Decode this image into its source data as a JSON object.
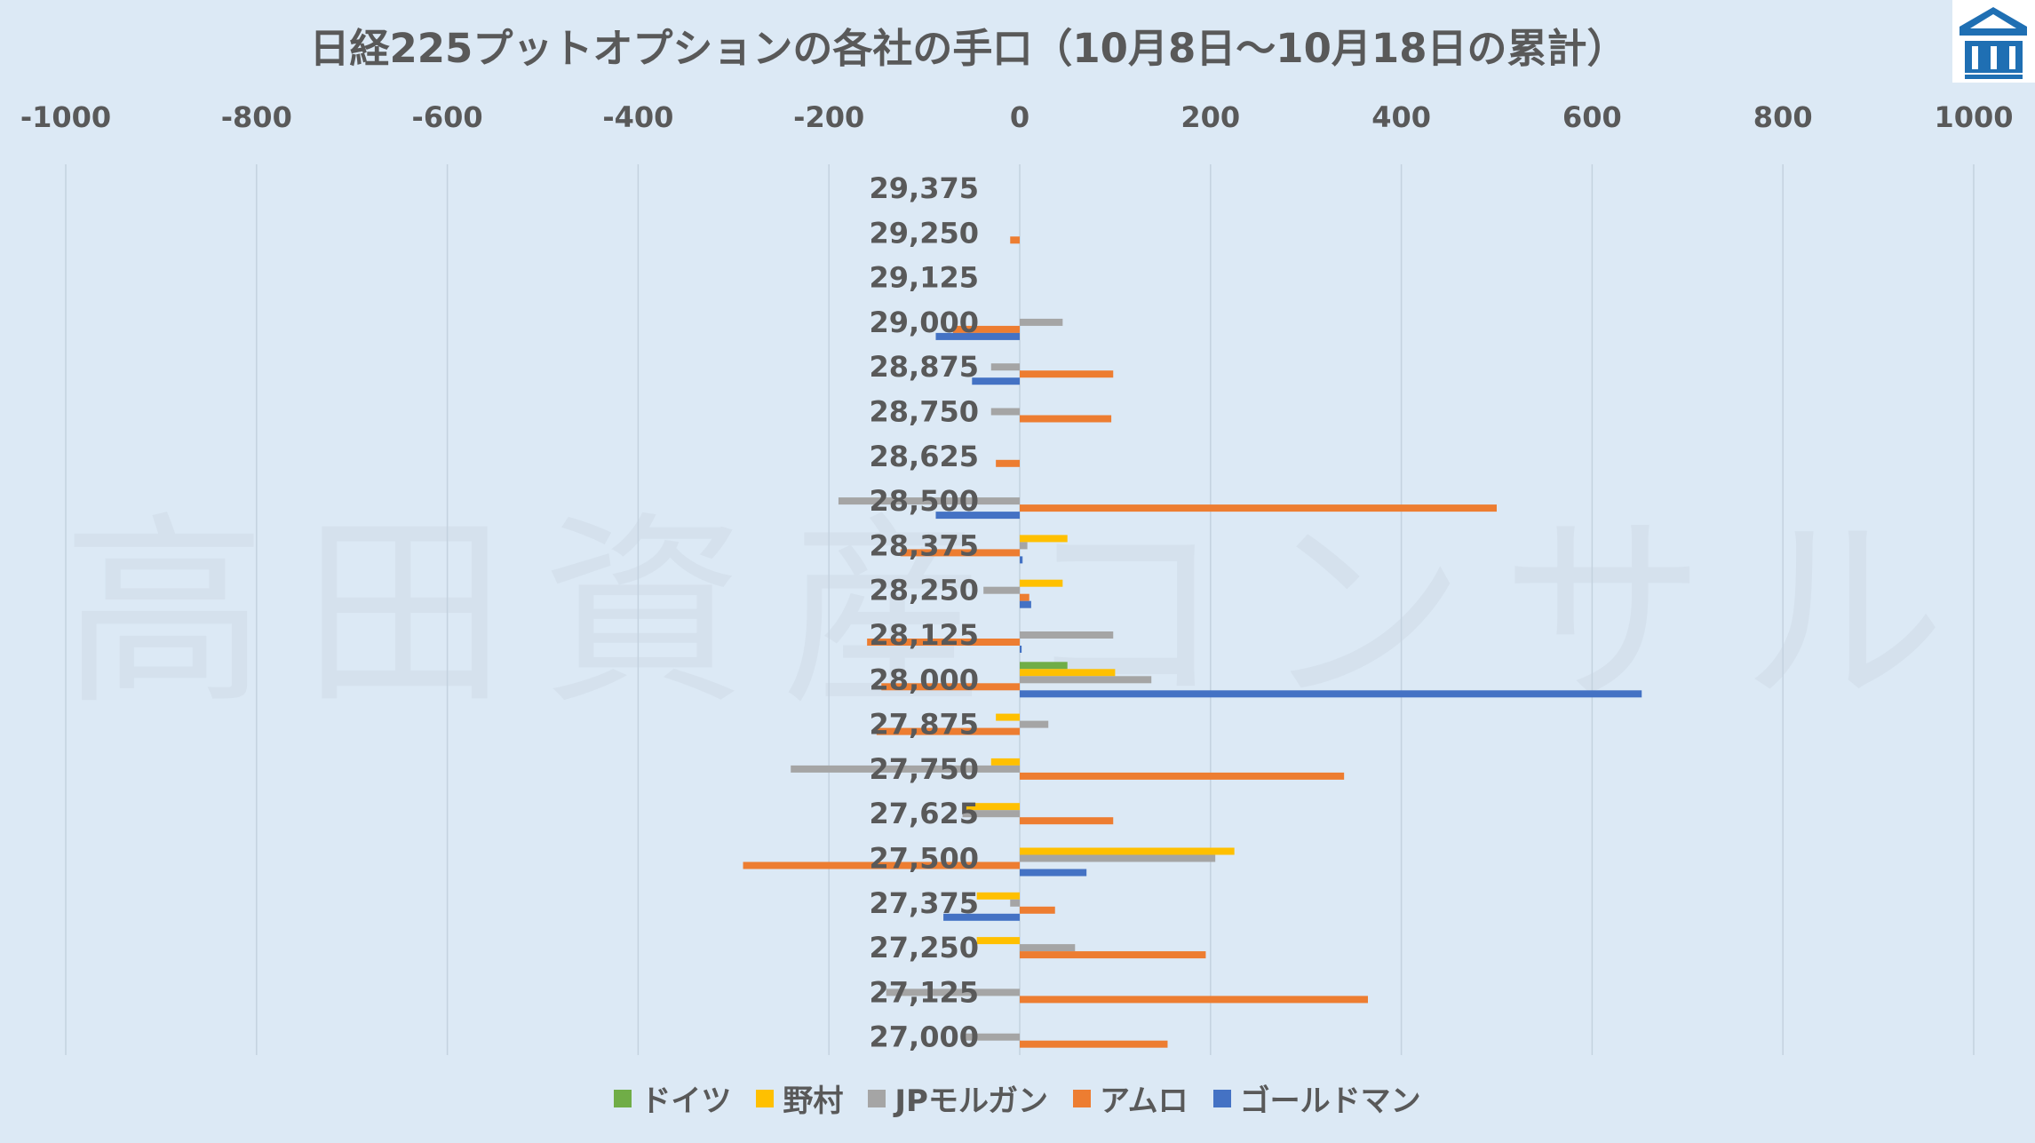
{
  "chart_data": {
    "type": "bar",
    "orientation": "horizontal",
    "title": "日経225プットオプションの各社の手口（10月8日～10月18日の累計）",
    "watermark": "高田資産コンサル",
    "xlim": [
      -1000,
      1000
    ],
    "xticks": [
      "-1000",
      "-800",
      "-600",
      "-400",
      "-200",
      "0",
      "200",
      "400",
      "600",
      "800",
      "1000"
    ],
    "xtick_values": [
      -1000,
      -800,
      -600,
      -400,
      -200,
      0,
      200,
      400,
      600,
      800,
      1000
    ],
    "grid": true,
    "legend_position": "bottom",
    "categories": [
      "29,375",
      "29,250",
      "29,125",
      "29,000",
      "28,875",
      "28,750",
      "28,625",
      "28,500",
      "28,375",
      "28,250",
      "28,125",
      "28,000",
      "27,875",
      "27,750",
      "27,625",
      "27,500",
      "27,375",
      "27,250",
      "27,125",
      "27,000"
    ],
    "series": [
      {
        "name": "ドイツ",
        "color": "#70ad47",
        "values": [
          0,
          0,
          0,
          0,
          0,
          0,
          0,
          0,
          0,
          0,
          0,
          50,
          0,
          0,
          0,
          0,
          0,
          0,
          0,
          0
        ]
      },
      {
        "name": "野村",
        "color": "#ffc000",
        "values": [
          0,
          0,
          0,
          0,
          0,
          0,
          0,
          0,
          50,
          45,
          0,
          100,
          -25,
          -30,
          -60,
          225,
          -45,
          -45,
          0,
          0
        ]
      },
      {
        "name": "JPモルガン",
        "color": "#a5a5a5",
        "values": [
          0,
          0,
          0,
          45,
          -30,
          -30,
          0,
          -190,
          8,
          -38,
          98,
          138,
          30,
          -240,
          -60,
          205,
          -10,
          58,
          -140,
          -60
        ]
      },
      {
        "name": "アムロ",
        "color": "#ed7d31",
        "values": [
          0,
          -10,
          0,
          -70,
          98,
          96,
          -25,
          500,
          -125,
          10,
          -160,
          -145,
          -150,
          340,
          98,
          -290,
          37,
          195,
          365,
          155
        ]
      },
      {
        "name": "ゴールドマン",
        "color": "#4472c4",
        "values": [
          0,
          0,
          0,
          -88,
          -50,
          0,
          0,
          -88,
          3,
          12,
          2,
          652,
          0,
          0,
          0,
          70,
          -80,
          0,
          0,
          0
        ]
      }
    ]
  }
}
